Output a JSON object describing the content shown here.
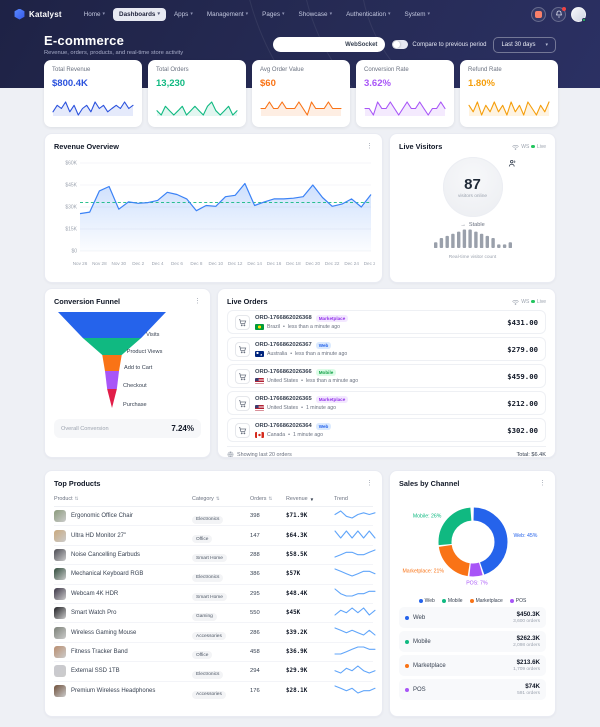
{
  "brand": {
    "name": "Katalyst"
  },
  "navbar": {
    "items": [
      {
        "label": "Home",
        "active": false
      },
      {
        "label": "Dashboards",
        "active": true
      },
      {
        "label": "Apps",
        "active": false
      },
      {
        "label": "Management",
        "active": false
      },
      {
        "label": "Pages",
        "active": false
      },
      {
        "label": "Showcase",
        "active": false
      },
      {
        "label": "Authentication",
        "active": false
      },
      {
        "label": "System",
        "active": false
      }
    ]
  },
  "header": {
    "title": "E-commerce",
    "subtitle": "Revenue, orders, products, and real-time store activity",
    "websocket_label": "WebSocket",
    "compare_label": "Compare to previous period",
    "period_value": "Last 30 days"
  },
  "kpis": [
    {
      "label": "Total Revenue",
      "value": "$800.4K",
      "color": "#2b52dd",
      "spark": [
        3,
        5,
        4,
        6,
        3,
        5,
        2,
        4,
        5,
        3,
        6,
        4,
        5,
        3,
        4,
        5,
        4,
        6,
        4,
        5
      ]
    },
    {
      "label": "Total Orders",
      "value": "13,230",
      "color": "#10b981",
      "spark": [
        4,
        3,
        5,
        4,
        3,
        4,
        5,
        3,
        4,
        5,
        4,
        3,
        5,
        6,
        4,
        3,
        4,
        5,
        3,
        4
      ]
    },
    {
      "label": "Avg Order Value",
      "value": "$60",
      "color": "#f97316",
      "spark": [
        4,
        4,
        5,
        4,
        4,
        5,
        4,
        4,
        4,
        5,
        4,
        3,
        5,
        4,
        4,
        4,
        5,
        4,
        4,
        4
      ]
    },
    {
      "label": "Conversion Rate",
      "value": "3.62%",
      "color": "#a855f7",
      "spark": [
        4,
        4,
        3,
        5,
        4,
        4,
        5,
        4,
        3,
        4,
        5,
        4,
        4,
        5,
        4,
        3,
        4,
        4,
        5,
        4
      ]
    },
    {
      "label": "Refund Rate",
      "value": "1.80%",
      "color": "#f59e0b",
      "spark": [
        5,
        3,
        6,
        2,
        5,
        3,
        6,
        3,
        5,
        2,
        6,
        3,
        5,
        2,
        6,
        4,
        2,
        5,
        3,
        6
      ]
    }
  ],
  "revenue_overview": {
    "title": "Revenue Overview",
    "chart": {
      "type": "area",
      "y_max": 60,
      "y_ticks": [
        "$0",
        "$15K",
        "$30K",
        "$45K",
        "$60K"
      ],
      "x_labels": [
        "Nov 26",
        "Nov 28",
        "Nov 30",
        "Dec 2",
        "Dec 4",
        "Dec 6",
        "Dec 8",
        "Dec 10",
        "Dec 12",
        "Dec 14",
        "Dec 16",
        "Dec 18",
        "Dec 20",
        "Dec 22",
        "Dec 24",
        "Dec 26"
      ],
      "revenue": [
        25.5,
        26.5,
        41,
        44,
        28.5,
        33.5,
        32.5,
        33,
        34.5,
        40,
        38.5,
        35.5,
        27.5,
        31,
        30.5,
        37,
        38,
        46,
        31,
        33.5,
        35.5,
        35.5,
        36,
        37,
        45,
        36.5,
        30.5,
        32,
        35.5,
        30,
        38.5
      ],
      "target": 33,
      "legend": [
        {
          "label": "Revenue",
          "color": "#3b82f6"
        },
        {
          "label": "Target",
          "color": "#10b981"
        }
      ]
    }
  },
  "live_visitors": {
    "title": "Live Visitors",
    "ws_label": "WS",
    "live_label": "Live",
    "count": "87",
    "count_caption": "visitors online",
    "trend_arrow": "→",
    "trend_label": "Stable",
    "bars": [
      2,
      4,
      5,
      6,
      7,
      8,
      8,
      7,
      6,
      5,
      4,
      1,
      1,
      2
    ],
    "caption": "Real-time visitor count"
  },
  "conversion_funnel": {
    "title": "Conversion Funnel",
    "stages": [
      {
        "label": "Visits",
        "color": "#2563eb"
      },
      {
        "label": "Product Views",
        "color": "#10b981"
      },
      {
        "label": "Add to Cart",
        "color": "#f97316"
      },
      {
        "label": "Checkout",
        "color": "#a855f7"
      },
      {
        "label": "Purchase",
        "color": "#e11d48"
      }
    ],
    "widths_pct": [
      100,
      54,
      18,
      13,
      9,
      0
    ],
    "footer_label": "Overall Conversion",
    "footer_value": "7.24%"
  },
  "live_orders": {
    "title": "Live Orders",
    "ws_label": "WS",
    "live_label": "Live",
    "orders": [
      {
        "id": "ORD-1766862026368",
        "channel": "Marketplace",
        "country": "Brazil",
        "flag": "br",
        "time": "less than a minute ago",
        "amount": "$431.00"
      },
      {
        "id": "ORD-1766862026367",
        "channel": "Web",
        "country": "Australia",
        "flag": "au",
        "time": "less than a minute ago",
        "amount": "$279.00"
      },
      {
        "id": "ORD-1766862026366",
        "channel": "Mobile",
        "country": "United States",
        "flag": "us",
        "time": "less than a minute ago",
        "amount": "$459.00"
      },
      {
        "id": "ORD-1766862026365",
        "channel": "Marketplace",
        "country": "United States",
        "flag": "us",
        "time": "1 minute ago",
        "amount": "$212.00"
      },
      {
        "id": "ORD-1766862026364",
        "channel": "Web",
        "country": "Canada",
        "flag": "ca",
        "time": "1 minute ago",
        "amount": "$302.00"
      }
    ],
    "footer_left": "Showing last 20 orders",
    "footer_right": "Total: $6.4K"
  },
  "top_products": {
    "title": "Top Products",
    "columns": [
      {
        "label": "Product",
        "sort": "both"
      },
      {
        "label": "Category",
        "sort": "both"
      },
      {
        "label": "Orders",
        "sort": "both"
      },
      {
        "label": "Revenue",
        "sort": "desc"
      },
      {
        "label": "Trend",
        "sort": null
      }
    ],
    "rows": [
      {
        "product": "Ergonomic Office Chair",
        "category": "Electronics",
        "orders": "398",
        "revenue": "$71.9K",
        "thumb": "#8a9a7b",
        "trend": [
          4,
          6,
          3,
          2,
          4,
          5,
          4,
          5
        ]
      },
      {
        "product": "Ultra HD Monitor 27\"",
        "category": "Office",
        "orders": "147",
        "revenue": "$64.3K",
        "thumb": "#c9a87c",
        "trend": [
          5,
          4,
          5,
          4,
          5,
          4,
          5,
          4
        ]
      },
      {
        "product": "Noise Cancelling Earbuds",
        "category": "Smart Home",
        "orders": "288",
        "revenue": "$58.5K",
        "thumb": "#4a4a52",
        "trend": [
          3,
          4,
          5,
          5,
          4,
          4,
          5,
          6
        ]
      },
      {
        "product": "Mechanical Keyboard RGB",
        "category": "Electronics",
        "orders": "386",
        "revenue": "$57K",
        "thumb": "#2e4a3a",
        "trend": [
          6,
          5,
          4,
          3,
          4,
          5,
          5,
          4
        ]
      },
      {
        "product": "Webcam 4K HDR",
        "category": "Smart Home",
        "orders": "295",
        "revenue": "$48.4K",
        "thumb": "#3a3344",
        "trend": [
          6,
          4,
          3,
          3,
          4,
          4,
          5,
          5
        ]
      },
      {
        "product": "Smart Watch Pro",
        "category": "Gaming",
        "orders": "550",
        "revenue": "$45K",
        "thumb": "#1e1e22",
        "trend": [
          3,
          5,
          4,
          6,
          4,
          6,
          3,
          5
        ]
      },
      {
        "product": "Wireless Gaming Mouse",
        "category": "Accessories",
        "orders": "286",
        "revenue": "$39.2K",
        "thumb": "#7b8077",
        "trend": [
          6,
          5,
          4,
          5,
          4,
          3,
          5,
          3
        ]
      },
      {
        "product": "Fitness Tracker Band",
        "category": "Office",
        "orders": "458",
        "revenue": "$36.9K",
        "thumb": "#b98d6e",
        "trend": [
          3,
          3,
          4,
          5,
          6,
          6,
          5,
          5
        ]
      },
      {
        "product": "External SSD 1TB",
        "category": "Electronics",
        "orders": "294",
        "revenue": "$29.9K",
        "thumb": "#c9c9cf",
        "trend": [
          4,
          3,
          5,
          4,
          6,
          4,
          3,
          4
        ]
      },
      {
        "product": "Premium Wireless Headphones",
        "category": "Accessories",
        "orders": "176",
        "revenue": "$28.1K",
        "thumb": "#6e4f3a",
        "trend": [
          6,
          5,
          4,
          5,
          3,
          4,
          4,
          5
        ]
      }
    ]
  },
  "sales_by_channel": {
    "title": "Sales by Channel",
    "chart": {
      "type": "donut",
      "segments": [
        {
          "label": "Web",
          "pct": 45,
          "color": "#2563eb",
          "value": "$450.3K",
          "orders": "3,600 orders"
        },
        {
          "label": "POS",
          "pct": 7,
          "color": "#a855f7",
          "value": "$74K",
          "orders": "591 orders"
        },
        {
          "label": "Marketplace",
          "pct": 21,
          "color": "#f97316",
          "value": "$213.6K",
          "orders": "1,709 orders"
        },
        {
          "label": "Mobile",
          "pct": 26,
          "color": "#10b981",
          "value": "$262.3K",
          "orders": "2,098 orders"
        }
      ],
      "legend_order": [
        "Web",
        "Mobile",
        "Marketplace",
        "POS"
      ],
      "list_order": [
        "Web",
        "Mobile",
        "Marketplace",
        "POS"
      ]
    }
  }
}
